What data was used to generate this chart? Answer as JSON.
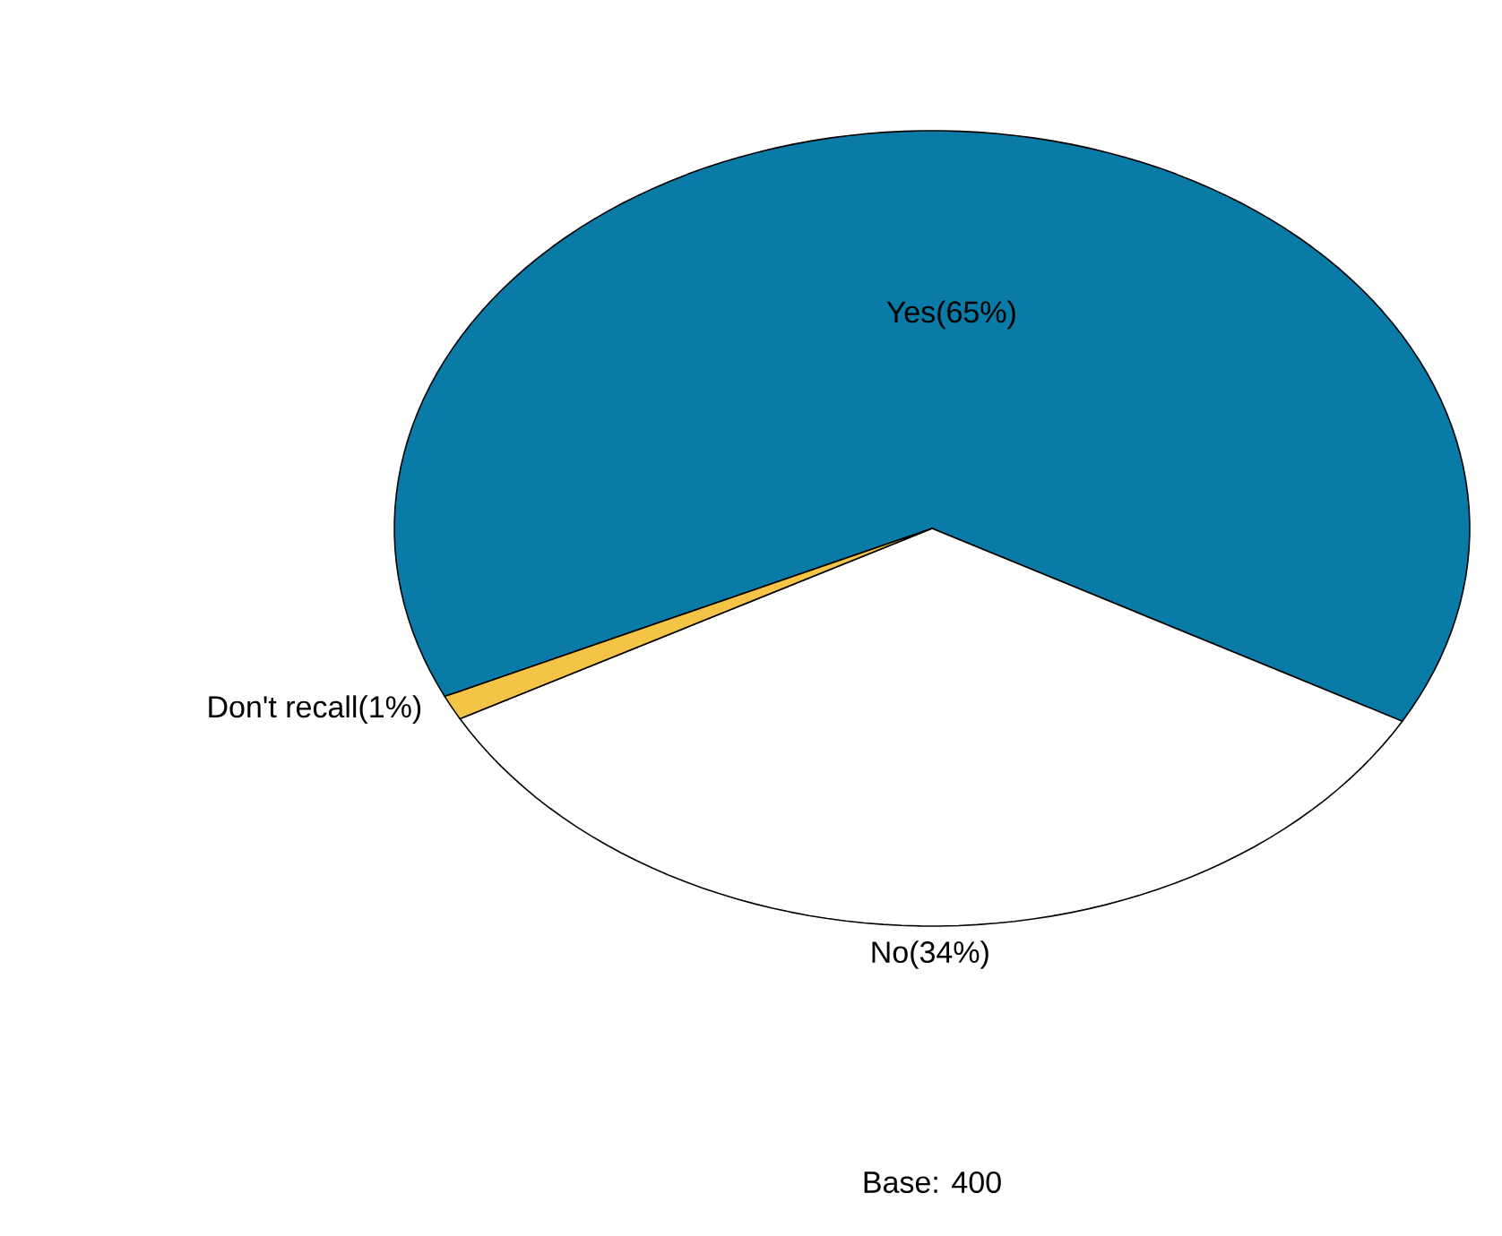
{
  "chart_data": {
    "type": "pie",
    "categories": [
      "Yes(65%)",
      "No(34%)",
      "Don't recall(1%)"
    ],
    "values": [
      65,
      34,
      1
    ],
    "colors": [
      "#0a7ba6",
      "#ffffff",
      "#f3c445"
    ],
    "annotations": [
      "Base:  400"
    ]
  }
}
